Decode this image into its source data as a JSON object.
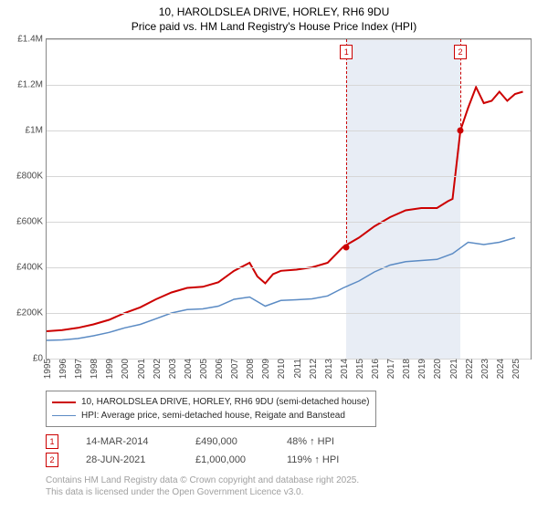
{
  "title": {
    "line1": "10, HAROLDSLEA DRIVE, HORLEY, RH6 9DU",
    "line2": "Price paid vs. HM Land Registry's House Price Index (HPI)"
  },
  "chart": {
    "type": "line",
    "background_color": "#ffffff",
    "shade_color": "#e8edf5",
    "grid_color": "#d6d6d6",
    "border_color": "#888888",
    "x_start": 1995,
    "x_end": 2026,
    "x_ticks": [
      1995,
      1996,
      1997,
      1998,
      1999,
      2000,
      2001,
      2002,
      2003,
      2004,
      2005,
      2006,
      2007,
      2008,
      2009,
      2010,
      2011,
      2012,
      2013,
      2014,
      2015,
      2016,
      2017,
      2018,
      2019,
      2020,
      2021,
      2022,
      2023,
      2024,
      2025
    ],
    "y_min": 0,
    "y_max": 1400000,
    "y_ticks": [
      {
        "v": 0,
        "label": "£0"
      },
      {
        "v": 200000,
        "label": "£200K"
      },
      {
        "v": 400000,
        "label": "£400K"
      },
      {
        "v": 600000,
        "label": "£600K"
      },
      {
        "v": 800000,
        "label": "£800K"
      },
      {
        "v": 1000000,
        "label": "£1M"
      },
      {
        "v": 1200000,
        "label": "£1.2M"
      },
      {
        "v": 1400000,
        "label": "£1.4M"
      }
    ],
    "series": [
      {
        "name": "10, HAROLDSLEA DRIVE, HORLEY, RH6 9DU (semi-detached house)",
        "color": "#cc0000",
        "width": 2,
        "points": [
          [
            1995,
            120000
          ],
          [
            1996,
            125000
          ],
          [
            1997,
            135000
          ],
          [
            1998,
            150000
          ],
          [
            1999,
            170000
          ],
          [
            2000,
            200000
          ],
          [
            2001,
            225000
          ],
          [
            2002,
            260000
          ],
          [
            2003,
            290000
          ],
          [
            2004,
            310000
          ],
          [
            2005,
            315000
          ],
          [
            2006,
            335000
          ],
          [
            2007,
            385000
          ],
          [
            2008,
            420000
          ],
          [
            2008.5,
            360000
          ],
          [
            2009,
            330000
          ],
          [
            2009.5,
            370000
          ],
          [
            2010,
            385000
          ],
          [
            2011,
            390000
          ],
          [
            2012,
            400000
          ],
          [
            2013,
            420000
          ],
          [
            2014,
            490000
          ],
          [
            2015,
            530000
          ],
          [
            2016,
            580000
          ],
          [
            2017,
            620000
          ],
          [
            2018,
            650000
          ],
          [
            2019,
            660000
          ],
          [
            2020,
            660000
          ],
          [
            2020.7,
            690000
          ],
          [
            2021,
            700000
          ],
          [
            2021.5,
            1000000
          ],
          [
            2022,
            1100000
          ],
          [
            2022.5,
            1190000
          ],
          [
            2023,
            1120000
          ],
          [
            2023.5,
            1130000
          ],
          [
            2024,
            1170000
          ],
          [
            2024.5,
            1130000
          ],
          [
            2025,
            1160000
          ],
          [
            2025.5,
            1170000
          ]
        ]
      },
      {
        "name": "HPI: Average price, semi-detached house, Reigate and Banstead",
        "color": "#5b8bc4",
        "width": 1.5,
        "points": [
          [
            1995,
            80000
          ],
          [
            1996,
            82000
          ],
          [
            1997,
            88000
          ],
          [
            1998,
            100000
          ],
          [
            1999,
            115000
          ],
          [
            2000,
            135000
          ],
          [
            2001,
            150000
          ],
          [
            2002,
            175000
          ],
          [
            2003,
            200000
          ],
          [
            2004,
            215000
          ],
          [
            2005,
            218000
          ],
          [
            2006,
            230000
          ],
          [
            2007,
            260000
          ],
          [
            2008,
            270000
          ],
          [
            2009,
            230000
          ],
          [
            2010,
            255000
          ],
          [
            2011,
            258000
          ],
          [
            2012,
            262000
          ],
          [
            2013,
            275000
          ],
          [
            2014,
            310000
          ],
          [
            2015,
            340000
          ],
          [
            2016,
            380000
          ],
          [
            2017,
            410000
          ],
          [
            2018,
            425000
          ],
          [
            2019,
            430000
          ],
          [
            2020,
            435000
          ],
          [
            2021,
            460000
          ],
          [
            2022,
            510000
          ],
          [
            2023,
            500000
          ],
          [
            2024,
            510000
          ],
          [
            2025,
            530000
          ]
        ]
      }
    ],
    "shade_range": [
      2014.2,
      2021.5
    ],
    "markers": [
      {
        "n": "1",
        "x": 2014.2,
        "y": 490000,
        "color": "#cc0000"
      },
      {
        "n": "2",
        "x": 2021.5,
        "y": 1000000,
        "color": "#cc0000"
      }
    ]
  },
  "legend": {
    "items": [
      {
        "color": "#cc0000",
        "width": 2,
        "label": "10, HAROLDSLEA DRIVE, HORLEY, RH6 9DU (semi-detached house)"
      },
      {
        "color": "#5b8bc4",
        "width": 1.5,
        "label": "HPI: Average price, semi-detached house, Reigate and Banstead"
      }
    ]
  },
  "sales": [
    {
      "n": "1",
      "color": "#cc0000",
      "date": "14-MAR-2014",
      "price": "£490,000",
      "pct": "48% ↑ HPI"
    },
    {
      "n": "2",
      "color": "#cc0000",
      "date": "28-JUN-2021",
      "price": "£1,000,000",
      "pct": "119% ↑ HPI"
    }
  ],
  "footer": {
    "line1": "Contains HM Land Registry data © Crown copyright and database right 2025.",
    "line2": "This data is licensed under the Open Government Licence v3.0."
  }
}
